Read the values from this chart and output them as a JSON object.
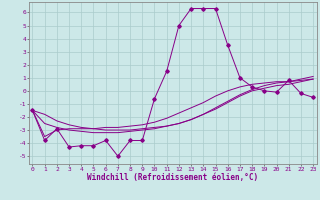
{
  "background_color": "#cce8e8",
  "grid_color": "#aacccc",
  "line_color": "#880088",
  "x_values": [
    0,
    1,
    2,
    3,
    4,
    5,
    6,
    7,
    8,
    9,
    10,
    11,
    12,
    13,
    14,
    15,
    16,
    17,
    18,
    19,
    20,
    21,
    22,
    23
  ],
  "line1_y": [
    -1.5,
    -3.8,
    -2.9,
    -4.3,
    -4.2,
    -4.2,
    -3.8,
    -5.0,
    -3.8,
    -3.8,
    -0.6,
    1.5,
    5.0,
    6.3,
    6.3,
    6.3,
    3.5,
    1.0,
    0.3,
    0.0,
    -0.1,
    0.8,
    -0.2,
    -0.5
  ],
  "line2_y": [
    -1.5,
    -3.5,
    -3.0,
    -2.9,
    -2.9,
    -2.9,
    -2.8,
    -2.8,
    -2.7,
    -2.6,
    -2.4,
    -2.1,
    -1.7,
    -1.3,
    -0.9,
    -0.4,
    0.0,
    0.3,
    0.5,
    0.6,
    0.7,
    0.7,
    0.8,
    0.9
  ],
  "line3_y": [
    -1.5,
    -2.5,
    -2.8,
    -3.0,
    -3.1,
    -3.2,
    -3.2,
    -3.2,
    -3.1,
    -3.0,
    -2.9,
    -2.7,
    -2.5,
    -2.2,
    -1.8,
    -1.4,
    -0.9,
    -0.4,
    0.0,
    0.2,
    0.4,
    0.5,
    0.7,
    0.9
  ],
  "line4_y": [
    -1.5,
    -1.8,
    -2.3,
    -2.6,
    -2.8,
    -2.9,
    -3.0,
    -3.0,
    -3.0,
    -2.9,
    -2.8,
    -2.7,
    -2.5,
    -2.2,
    -1.8,
    -1.3,
    -0.8,
    -0.3,
    0.1,
    0.4,
    0.6,
    0.7,
    0.9,
    1.1
  ],
  "xlabel": "Windchill (Refroidissement éolien,°C)",
  "ytick_labels": [
    "6",
    "5",
    "4",
    "3",
    "2",
    "1",
    "0",
    "-1",
    "-2",
    "-3",
    "-4",
    "-5"
  ],
  "ytick_vals": [
    6,
    5,
    4,
    3,
    2,
    1,
    0,
    -1,
    -2,
    -3,
    -4,
    -5
  ],
  "xtick_vals": [
    0,
    1,
    2,
    3,
    4,
    5,
    6,
    7,
    8,
    9,
    10,
    11,
    12,
    13,
    14,
    15,
    16,
    17,
    18,
    19,
    20,
    21,
    22,
    23
  ],
  "ylim": [
    -5.6,
    6.8
  ],
  "xlim": [
    -0.3,
    23.3
  ]
}
